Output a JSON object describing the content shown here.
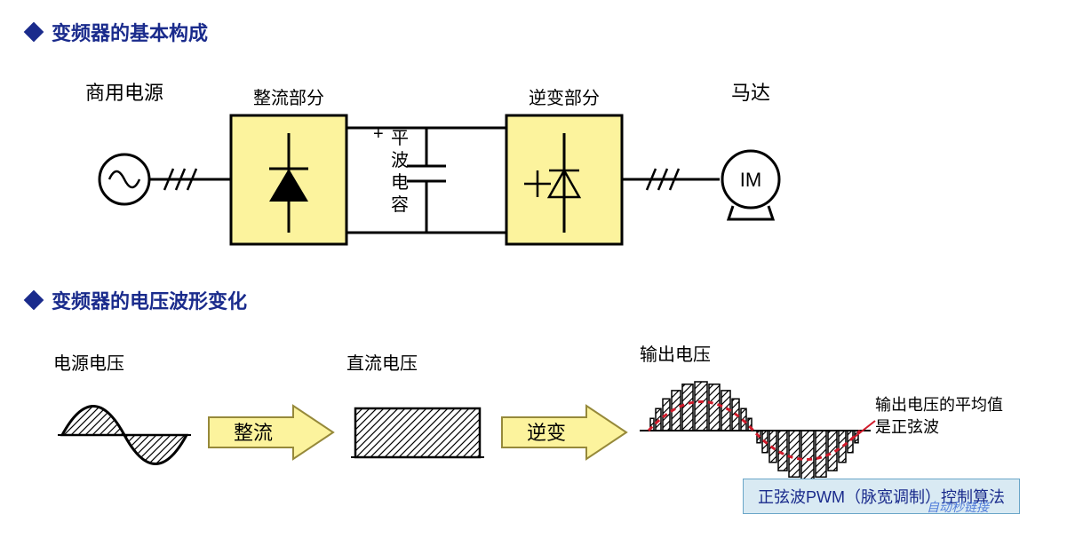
{
  "section1": {
    "title": "变频器的基本构成",
    "title_color": "#1a2b8c",
    "labels": {
      "power_source": "商用电源",
      "rectifier": "整流部分",
      "capacitor": "平\n波\n电\n容",
      "inverter": "逆变部分",
      "motor": "马达",
      "motor_inner": "IM",
      "cap_plus": "+"
    },
    "style": {
      "box_fill": "#fcf39d",
      "box_stroke": "#000000",
      "stroke_width": 3,
      "font_size": 20,
      "label_font_size": 22
    }
  },
  "section2": {
    "title": "变频器的电压波形变化",
    "title_color": "#1a2b8c",
    "labels": {
      "source_voltage": "电源电压",
      "dc_voltage": "直流电压",
      "output_voltage": "输出电压",
      "rectify_arrow": "整流",
      "invert_arrow": "逆变",
      "note_line1": "输出电压的平均值",
      "note_line2": "是正弦波"
    },
    "style": {
      "arrow_fill": "#fcf39d",
      "arrow_stroke": "#96893a",
      "sine_color": "#d11a2a",
      "hatch_stroke": "#000000",
      "note_line_color": "#d11a2a",
      "font_size": 20,
      "arrow_font_size": 22
    },
    "pwm_bars": {
      "count_half": 11,
      "max_height": 55,
      "widths": [
        4,
        6,
        8,
        10,
        12,
        14,
        12,
        10,
        8,
        6,
        4
      ],
      "heights_ratio": [
        0.25,
        0.45,
        0.65,
        0.82,
        0.95,
        1.0,
        0.95,
        0.82,
        0.65,
        0.45,
        0.25
      ]
    }
  },
  "footer": {
    "text": "正弦波PWM（脉宽调制）控制算法",
    "bg": "#d9eaf3",
    "border": "#6aa6c8",
    "color": "#1a2b8c"
  },
  "watermark": "自动秒链接"
}
